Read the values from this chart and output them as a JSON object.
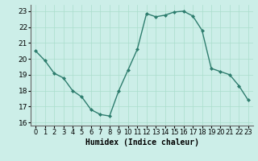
{
  "x": [
    0,
    1,
    2,
    3,
    4,
    5,
    6,
    7,
    8,
    9,
    10,
    11,
    12,
    13,
    14,
    15,
    16,
    17,
    18,
    19,
    20,
    21,
    22,
    23
  ],
  "y": [
    20.5,
    19.9,
    19.1,
    18.8,
    18.0,
    17.6,
    16.8,
    16.5,
    16.4,
    18.0,
    19.3,
    20.6,
    22.85,
    22.65,
    22.75,
    22.95,
    23.0,
    22.7,
    21.8,
    19.4,
    19.2,
    19.0,
    18.3,
    17.4
  ],
  "line_color": "#2e7d6e",
  "marker": "D",
  "marker_size": 2.0,
  "linewidth": 1.0,
  "background_color": "#cceee8",
  "grid_color": "#aaddcc",
  "xlabel": "Humidex (Indice chaleur)",
  "xlabel_fontsize": 7,
  "tick_fontsize": 6.5,
  "ylim": [
    15.8,
    23.4
  ],
  "yticks": [
    16,
    17,
    18,
    19,
    20,
    21,
    22,
    23
  ],
  "xlim": [
    -0.5,
    23.5
  ]
}
